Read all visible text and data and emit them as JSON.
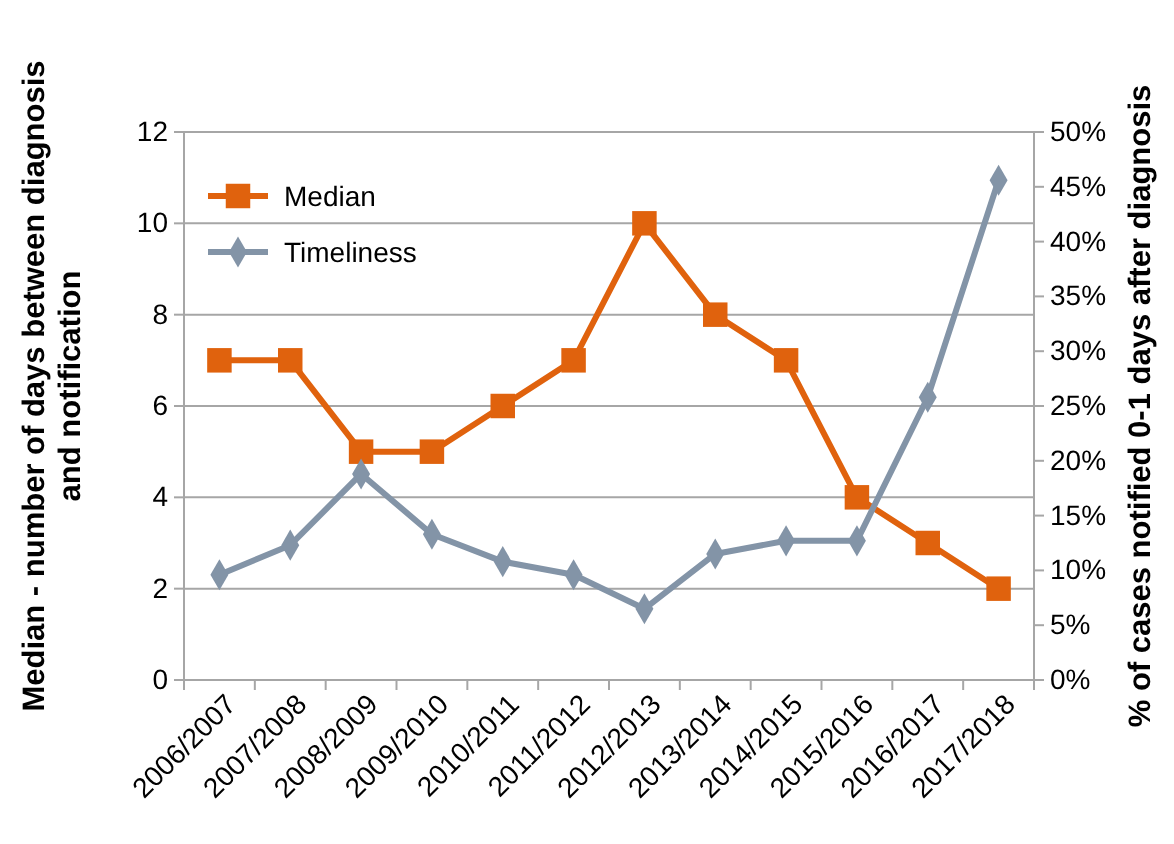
{
  "chart_data": {
    "type": "line",
    "categories": [
      "2006/2007",
      "2007/2008",
      "2008/2009",
      "2009/2010",
      "2010/2011",
      "2011/2012",
      "2012/2013",
      "2013/2014",
      "2014/2015",
      "2015/2016",
      "2016/2017",
      "2017/2018"
    ],
    "ylabel": "Median - number of days  between diagnosis and notification",
    "y2label": "% of cases notified 0-1 days after diagnosis",
    "ylim": [
      0,
      12
    ],
    "yticks": [
      0,
      2,
      4,
      6,
      8,
      10,
      12
    ],
    "y2lim": [
      0,
      50
    ],
    "y2ticks": [
      {
        "value": 0,
        "label": "0%"
      },
      {
        "value": 5,
        "label": "5%"
      },
      {
        "value": 10,
        "label": "10%"
      },
      {
        "value": 15,
        "label": "15%"
      },
      {
        "value": 20,
        "label": "20%"
      },
      {
        "value": 25,
        "label": "25%"
      },
      {
        "value": 30,
        "label": "30%"
      },
      {
        "value": 35,
        "label": "35%"
      },
      {
        "value": 40,
        "label": "40%"
      },
      {
        "value": 45,
        "label": "45%"
      },
      {
        "value": 50,
        "label": "50%"
      }
    ],
    "grid": "y",
    "legend": "top left",
    "series": [
      {
        "name": "Median",
        "color": "#e0620d",
        "marker": "square",
        "values": [
          7,
          7,
          5,
          5,
          6,
          7,
          10,
          8,
          7,
          4,
          3,
          2
        ]
      },
      {
        "name": "Timeliness",
        "color": "#8394a7",
        "marker": "diamond",
        "axis": "y2",
        "values": [
          9.6,
          12.3,
          18.8,
          13.3,
          10.8,
          9.6,
          6.5,
          11.5,
          12.7,
          12.7,
          25.8,
          45.6
        ]
      }
    ]
  }
}
